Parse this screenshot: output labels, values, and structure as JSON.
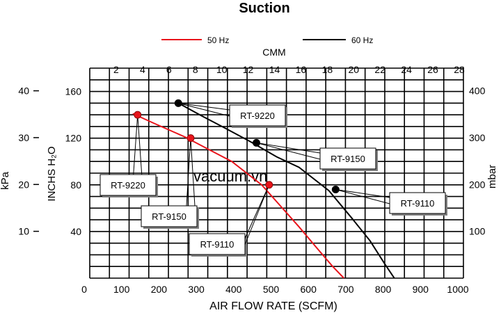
{
  "chart_data": {
    "type": "line",
    "title": "Suction",
    "xlabel": "AIR FLOW RATE (SCFM)",
    "x2label": "CMM",
    "ylabel": "INCHS H₂O",
    "y_left_outer_label": "kPa",
    "y_right_label": "mbar",
    "x_ticks": [
      "0",
      "100",
      "200",
      "300",
      "400",
      "500",
      "600",
      "700",
      "800",
      "900",
      "1000"
    ],
    "x2_ticks": [
      "2",
      "4",
      "6",
      "8",
      "10",
      "12",
      "14",
      "16",
      "18",
      "20",
      "22",
      "24",
      "26",
      "28"
    ],
    "y_ticks": [
      "40",
      "80",
      "120",
      "160"
    ],
    "kpa_ticks": [
      "10",
      "20",
      "30",
      "40"
    ],
    "mbar_ticks": [
      "100",
      "200",
      "300",
      "400"
    ],
    "xlim": [
      0,
      1000
    ],
    "ylim": [
      0,
      180
    ],
    "grid": true,
    "legend": {
      "position": "top",
      "entries": [
        "50 Hz",
        "60 Hz"
      ]
    },
    "watermark": "vacuum.vn",
    "series": [
      {
        "name": "50 Hz",
        "color": "#e8141b",
        "x": [
          115,
          170,
          255,
          320,
          380,
          460,
          510,
          560,
          610,
          650,
          680
        ],
        "y": [
          141,
          133,
          121,
          110,
          100,
          80,
          62,
          44,
          25,
          10,
          0
        ]
      },
      {
        "name": "60 Hz",
        "color": "#000000",
        "x": [
          237,
          300,
          360,
          430,
          500,
          560,
          640,
          700,
          750,
          790,
          815
        ],
        "y": [
          150,
          139,
          129,
          117,
          104,
          95,
          75,
          52,
          32,
          12,
          0
        ]
      }
    ],
    "points": [
      {
        "label": "RT-9220",
        "series": "60 Hz",
        "x": 237,
        "y": 150
      },
      {
        "label": "RT-9150",
        "series": "60 Hz",
        "x": 446,
        "y": 116
      },
      {
        "label": "RT-9110",
        "series": "60 Hz",
        "x": 658,
        "y": 76
      },
      {
        "label": "RT-9220",
        "series": "50 Hz",
        "x": 128,
        "y": 140
      },
      {
        "label": "RT-9150",
        "series": "50 Hz",
        "x": 270,
        "y": 120
      },
      {
        "label": "RT-9110",
        "series": "50 Hz",
        "x": 480,
        "y": 80
      }
    ]
  }
}
